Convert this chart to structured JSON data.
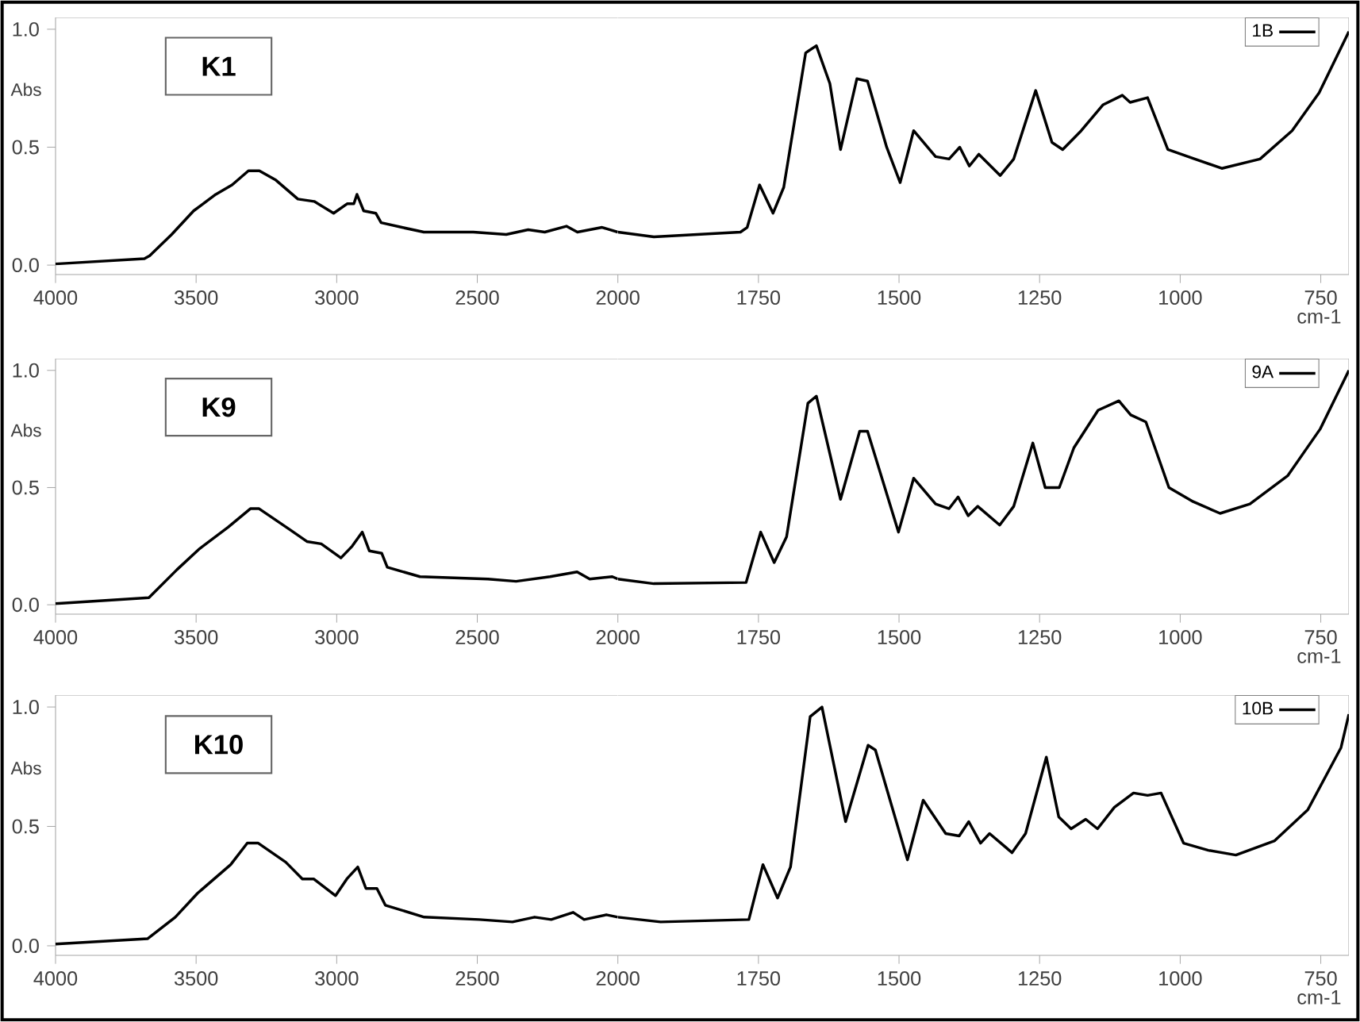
{
  "chart_data": [
    {
      "type": "line",
      "title": "K1",
      "ylabel": "Abs",
      "xlim": [
        4000,
        2000
      ],
      "ylim": [
        -0.04,
        1.05
      ],
      "xticks": [
        4000,
        3500,
        3000,
        2500,
        2000
      ],
      "yticks": [
        {
          "value": 0,
          "label": "0.0"
        },
        {
          "value": 0.5,
          "label": "0.5"
        },
        {
          "value": 1,
          "label": "1.0"
        }
      ],
      "marker": "none",
      "line_style": "solid",
      "series": [
        {
          "color": "#000000",
          "x": [
            4000,
            3684,
            3665,
            3587,
            3509,
            3430,
            3372,
            3314,
            3275,
            3216,
            3138,
            3080,
            3011,
            2963,
            2939,
            2928,
            2904,
            2861,
            2842,
            2768,
            2690,
            2514,
            2397,
            2319,
            2260,
            2183,
            2144,
            2056,
            2000
          ],
          "values": [
            0.005,
            0.027,
            0.04,
            0.13,
            0.23,
            0.3,
            0.34,
            0.4,
            0.4,
            0.36,
            0.28,
            0.27,
            0.22,
            0.26,
            0.26,
            0.3,
            0.23,
            0.22,
            0.18,
            0.16,
            0.14,
            0.14,
            0.13,
            0.15,
            0.14,
            0.165,
            0.14,
            0.16,
            0.14
          ]
        }
      ]
    },
    {
      "type": "line",
      "xlabel": "cm-1",
      "xlim": [
        2000,
        700
      ],
      "ylim": [
        -0.04,
        1.05
      ],
      "xticks": [
        1750,
        1500,
        1250,
        1000,
        750
      ],
      "tick_labels": "x",
      "legend": "top right",
      "marker": "none",
      "line_style": "solid",
      "series": [
        {
          "name": "1B",
          "color": "#000000",
          "x": [
            2000,
            1936,
            1782,
            1770,
            1748,
            1724,
            1705,
            1666,
            1647,
            1623,
            1604,
            1575,
            1556,
            1522,
            1498,
            1474,
            1435,
            1411,
            1392,
            1375,
            1358,
            1320,
            1296,
            1257,
            1228,
            1209,
            1176,
            1137,
            1103,
            1089,
            1058,
            1022,
            974,
            926,
            858,
            801,
            753,
            700
          ],
          "values": [
            0.14,
            0.12,
            0.14,
            0.16,
            0.34,
            0.22,
            0.33,
            0.9,
            0.93,
            0.77,
            0.49,
            0.79,
            0.78,
            0.5,
            0.35,
            0.57,
            0.46,
            0.45,
            0.5,
            0.42,
            0.47,
            0.38,
            0.45,
            0.74,
            0.52,
            0.49,
            0.57,
            0.68,
            0.72,
            0.69,
            0.71,
            0.49,
            0.45,
            0.41,
            0.45,
            0.57,
            0.73,
            0.99
          ]
        }
      ]
    },
    {
      "type": "line",
      "title": "K9",
      "ylabel": "Abs",
      "xlim": [
        4000,
        2000
      ],
      "ylim": [
        -0.04,
        1.05
      ],
      "xticks": [
        4000,
        3500,
        3000,
        2500,
        2000
      ],
      "yticks": [
        {
          "value": 0,
          "label": "0.0"
        },
        {
          "value": 0.5,
          "label": "0.5"
        },
        {
          "value": 1,
          "label": "1.0"
        }
      ],
      "marker": "none",
      "line_style": "solid",
      "series": [
        {
          "color": "#000000",
          "x": [
            4000,
            3668,
            3568,
            3487,
            3387,
            3307,
            3276,
            3166,
            3106,
            3055,
            2985,
            2945,
            2909,
            2884,
            2840,
            2820,
            2704,
            2462,
            2362,
            2241,
            2145,
            2100,
            2020,
            2000
          ],
          "values": [
            0.005,
            0.03,
            0.15,
            0.24,
            0.33,
            0.41,
            0.41,
            0.32,
            0.27,
            0.26,
            0.2,
            0.25,
            0.31,
            0.23,
            0.22,
            0.16,
            0.12,
            0.11,
            0.1,
            0.12,
            0.14,
            0.11,
            0.12,
            0.11
          ]
        }
      ]
    },
    {
      "type": "line",
      "xlabel": "cm-1",
      "xlim": [
        2000,
        700
      ],
      "ylim": [
        -0.04,
        1.05
      ],
      "xticks": [
        1750,
        1500,
        1250,
        1000,
        750
      ],
      "tick_labels": "x",
      "legend": "top right",
      "marker": "none",
      "line_style": "solid",
      "series": [
        {
          "name": "9A",
          "color": "#000000",
          "x": [
            2000,
            1936,
            1772,
            1746,
            1722,
            1700,
            1662,
            1647,
            1604,
            1570,
            1556,
            1501,
            1474,
            1435,
            1411,
            1395,
            1377,
            1360,
            1321,
            1296,
            1262,
            1240,
            1215,
            1189,
            1146,
            1109,
            1088,
            1061,
            1020,
            977,
            929,
            876,
            809,
            751,
            700
          ],
          "values": [
            0.11,
            0.09,
            0.095,
            0.31,
            0.18,
            0.29,
            0.86,
            0.89,
            0.45,
            0.74,
            0.74,
            0.31,
            0.54,
            0.43,
            0.41,
            0.46,
            0.38,
            0.42,
            0.34,
            0.42,
            0.69,
            0.5,
            0.5,
            0.67,
            0.83,
            0.87,
            0.81,
            0.78,
            0.5,
            0.44,
            0.39,
            0.43,
            0.55,
            0.75,
            1.0
          ]
        }
      ]
    },
    {
      "type": "line",
      "title": "K10",
      "ylabel": "Abs",
      "xlim": [
        4000,
        2000
      ],
      "ylim": [
        -0.04,
        1.05
      ],
      "xticks": [
        4000,
        3500,
        3000,
        2500,
        2000
      ],
      "yticks": [
        {
          "value": 0,
          "label": "0.0"
        },
        {
          "value": 0.5,
          "label": "0.5"
        },
        {
          "value": 1,
          "label": "1.0"
        }
      ],
      "marker": "none",
      "line_style": "solid",
      "series": [
        {
          "color": "#000000",
          "x": [
            4000,
            3672,
            3574,
            3495,
            3377,
            3318,
            3279,
            3181,
            3122,
            3082,
            3004,
            2964,
            2925,
            2896,
            2857,
            2827,
            2689,
            2493,
            2375,
            2296,
            2237,
            2159,
            2120,
            2041,
            2000
          ],
          "values": [
            0.007,
            0.03,
            0.12,
            0.22,
            0.34,
            0.43,
            0.43,
            0.35,
            0.28,
            0.28,
            0.21,
            0.28,
            0.33,
            0.24,
            0.24,
            0.17,
            0.12,
            0.11,
            0.1,
            0.12,
            0.11,
            0.14,
            0.11,
            0.13,
            0.12
          ]
        }
      ]
    },
    {
      "type": "line",
      "xlabel": "cm-1",
      "xlim": [
        2000,
        700
      ],
      "ylim": [
        -0.04,
        1.05
      ],
      "xticks": [
        1750,
        1500,
        1250,
        1000,
        750
      ],
      "tick_labels": "x",
      "legend": "top right",
      "marker": "none",
      "line_style": "solid",
      "series": [
        {
          "name": "10B",
          "color": "#000000",
          "x": [
            2000,
            1924,
            1767,
            1742,
            1716,
            1693,
            1658,
            1637,
            1595,
            1555,
            1542,
            1485,
            1457,
            1417,
            1393,
            1376,
            1355,
            1339,
            1299,
            1275,
            1238,
            1216,
            1194,
            1168,
            1147,
            1117,
            1083,
            1058,
            1034,
            994,
            950,
            901,
            832,
            773,
            714,
            700
          ],
          "values": [
            0.12,
            0.1,
            0.11,
            0.34,
            0.2,
            0.33,
            0.96,
            1.0,
            0.52,
            0.84,
            0.82,
            0.36,
            0.61,
            0.47,
            0.46,
            0.52,
            0.43,
            0.47,
            0.39,
            0.47,
            0.79,
            0.54,
            0.49,
            0.53,
            0.49,
            0.58,
            0.64,
            0.63,
            0.64,
            0.43,
            0.4,
            0.38,
            0.44,
            0.57,
            0.83,
            0.97
          ]
        }
      ]
    }
  ]
}
